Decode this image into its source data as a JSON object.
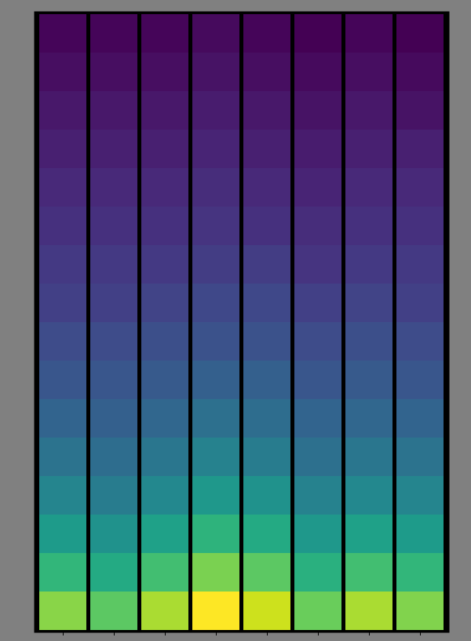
{
  "chart_data": {
    "type": "heatmap",
    "color": "viridis",
    "tick_labels": false,
    "cells": [
      [
        0.02,
        0.02,
        0.02,
        0.03,
        0.02,
        0.01,
        0.02,
        0.01
      ],
      [
        0.04,
        0.04,
        0.04,
        0.05,
        0.04,
        0.03,
        0.04,
        0.03
      ],
      [
        0.06,
        0.06,
        0.06,
        0.07,
        0.06,
        0.05,
        0.06,
        0.05
      ],
      [
        0.08,
        0.08,
        0.08,
        0.09,
        0.08,
        0.07,
        0.08,
        0.08
      ],
      [
        0.1,
        0.1,
        0.1,
        0.11,
        0.1,
        0.09,
        0.1,
        0.1
      ],
      [
        0.12,
        0.12,
        0.12,
        0.13,
        0.12,
        0.11,
        0.12,
        0.12
      ],
      [
        0.14,
        0.14,
        0.14,
        0.15,
        0.15,
        0.13,
        0.14,
        0.14
      ],
      [
        0.16,
        0.16,
        0.17,
        0.18,
        0.18,
        0.16,
        0.17,
        0.16
      ],
      [
        0.19,
        0.19,
        0.2,
        0.21,
        0.21,
        0.19,
        0.2,
        0.19
      ],
      [
        0.22,
        0.22,
        0.23,
        0.25,
        0.25,
        0.22,
        0.23,
        0.22
      ],
      [
        0.26,
        0.25,
        0.27,
        0.3,
        0.29,
        0.26,
        0.27,
        0.26
      ],
      [
        0.31,
        0.29,
        0.32,
        0.36,
        0.34,
        0.3,
        0.32,
        0.31
      ],
      [
        0.37,
        0.34,
        0.38,
        0.43,
        0.41,
        0.36,
        0.38,
        0.37
      ],
      [
        0.44,
        0.41,
        0.46,
        0.52,
        0.49,
        0.43,
        0.46,
        0.44
      ],
      [
        0.53,
        0.49,
        0.56,
        0.64,
        0.6,
        0.51,
        0.56,
        0.53
      ],
      [
        0.66,
        0.6,
        0.7,
        0.8,
        0.74,
        0.62,
        0.7,
        0.65
      ]
    ]
  }
}
